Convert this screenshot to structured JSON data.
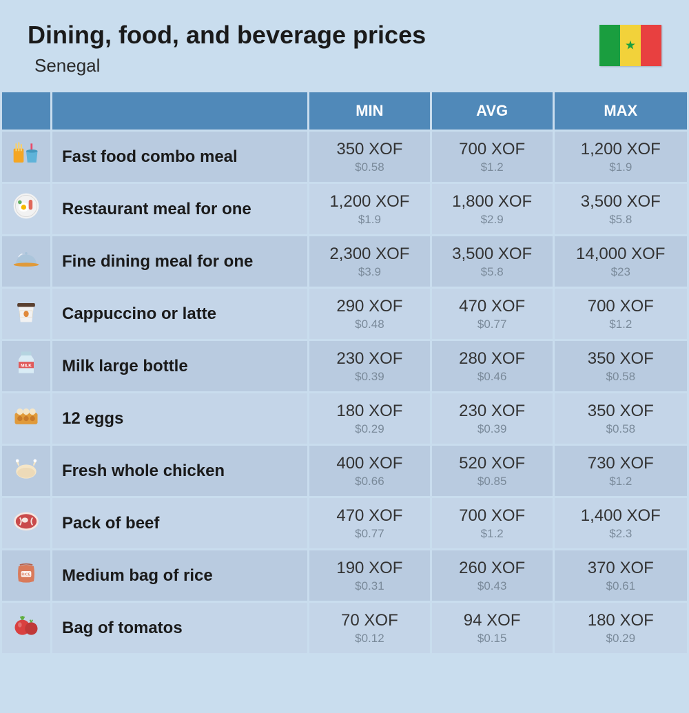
{
  "header": {
    "title": "Dining, food, and beverage prices",
    "subtitle": "Senegal",
    "flag_colors": {
      "green": "#1a9e3f",
      "yellow": "#f2d23a",
      "red": "#e84040"
    }
  },
  "table": {
    "columns": [
      "MIN",
      "AVG",
      "MAX"
    ],
    "row_bg": "#b9cbe0",
    "row_bg_alt": "#c4d5e8",
    "header_bg": "#5089b9",
    "header_fg": "#ffffff",
    "price_main_fontsize": 24,
    "price_sub_fontsize": 17,
    "price_sub_color": "#7a8a9a",
    "rows": [
      {
        "icon": "fast-food",
        "name": "Fast food combo meal",
        "min": {
          "xof": "350 XOF",
          "usd": "$0.58"
        },
        "avg": {
          "xof": "700 XOF",
          "usd": "$1.2"
        },
        "max": {
          "xof": "1,200 XOF",
          "usd": "$1.9"
        }
      },
      {
        "icon": "plate-egg",
        "name": "Restaurant meal for one",
        "min": {
          "xof": "1,200 XOF",
          "usd": "$1.9"
        },
        "avg": {
          "xof": "1,800 XOF",
          "usd": "$2.9"
        },
        "max": {
          "xof": "3,500 XOF",
          "usd": "$5.8"
        }
      },
      {
        "icon": "cloche",
        "name": "Fine dining meal for one",
        "min": {
          "xof": "2,300 XOF",
          "usd": "$3.9"
        },
        "avg": {
          "xof": "3,500 XOF",
          "usd": "$5.8"
        },
        "max": {
          "xof": "14,000 XOF",
          "usd": "$23"
        }
      },
      {
        "icon": "coffee-cup",
        "name": "Cappuccino or latte",
        "min": {
          "xof": "290 XOF",
          "usd": "$0.48"
        },
        "avg": {
          "xof": "470 XOF",
          "usd": "$0.77"
        },
        "max": {
          "xof": "700 XOF",
          "usd": "$1.2"
        }
      },
      {
        "icon": "milk-bottle",
        "name": "Milk large bottle",
        "min": {
          "xof": "230 XOF",
          "usd": "$0.39"
        },
        "avg": {
          "xof": "280 XOF",
          "usd": "$0.46"
        },
        "max": {
          "xof": "350 XOF",
          "usd": "$0.58"
        }
      },
      {
        "icon": "eggs-carton",
        "name": "12 eggs",
        "min": {
          "xof": "180 XOF",
          "usd": "$0.29"
        },
        "avg": {
          "xof": "230 XOF",
          "usd": "$0.39"
        },
        "max": {
          "xof": "350 XOF",
          "usd": "$0.58"
        }
      },
      {
        "icon": "chicken",
        "name": "Fresh whole chicken",
        "min": {
          "xof": "400 XOF",
          "usd": "$0.66"
        },
        "avg": {
          "xof": "520 XOF",
          "usd": "$0.85"
        },
        "max": {
          "xof": "730 XOF",
          "usd": "$1.2"
        }
      },
      {
        "icon": "beef",
        "name": "Pack of beef",
        "min": {
          "xof": "470 XOF",
          "usd": "$0.77"
        },
        "avg": {
          "xof": "700 XOF",
          "usd": "$1.2"
        },
        "max": {
          "xof": "1,400 XOF",
          "usd": "$2.3"
        }
      },
      {
        "icon": "rice-bag",
        "name": "Medium bag of rice",
        "min": {
          "xof": "190 XOF",
          "usd": "$0.31"
        },
        "avg": {
          "xof": "260 XOF",
          "usd": "$0.43"
        },
        "max": {
          "xof": "370 XOF",
          "usd": "$0.61"
        }
      },
      {
        "icon": "tomatoes",
        "name": "Bag of tomatos",
        "min": {
          "xof": "70 XOF",
          "usd": "$0.12"
        },
        "avg": {
          "xof": "94 XOF",
          "usd": "$0.15"
        },
        "max": {
          "xof": "180 XOF",
          "usd": "$0.29"
        }
      }
    ]
  },
  "icon_colors": {
    "fast-food": {
      "fries": "#f5a623",
      "cup": "#5fb3d9",
      "straw": "#e94b6a"
    },
    "plate-egg": {
      "plate": "#f2f2f2",
      "yolk": "#f5b800",
      "bacon": "#e0685a",
      "leaf": "#5fae5f"
    },
    "cloche": {
      "dome": "#a7c3da",
      "base": "#e09a3a"
    },
    "coffee-cup": {
      "cup": "#f2f2f2",
      "lid": "#5a4030",
      "bean": "#e0893a"
    },
    "milk-bottle": {
      "body": "#d9ecf5",
      "label": "#e05a5a",
      "text": "#fff"
    },
    "eggs-carton": {
      "box": "#e09a3a",
      "eggs": "#f5e6c8"
    },
    "chicken": {
      "body": "#f5e6c8",
      "shadow": "#e0c8a0"
    },
    "beef": {
      "meat": "#c94a4a",
      "fat": "#f5e6e0"
    },
    "rice-bag": {
      "bag": "#d97a5a",
      "label": "#fff"
    },
    "tomatoes": {
      "body": "#d94040",
      "leaf": "#5fae40"
    }
  }
}
